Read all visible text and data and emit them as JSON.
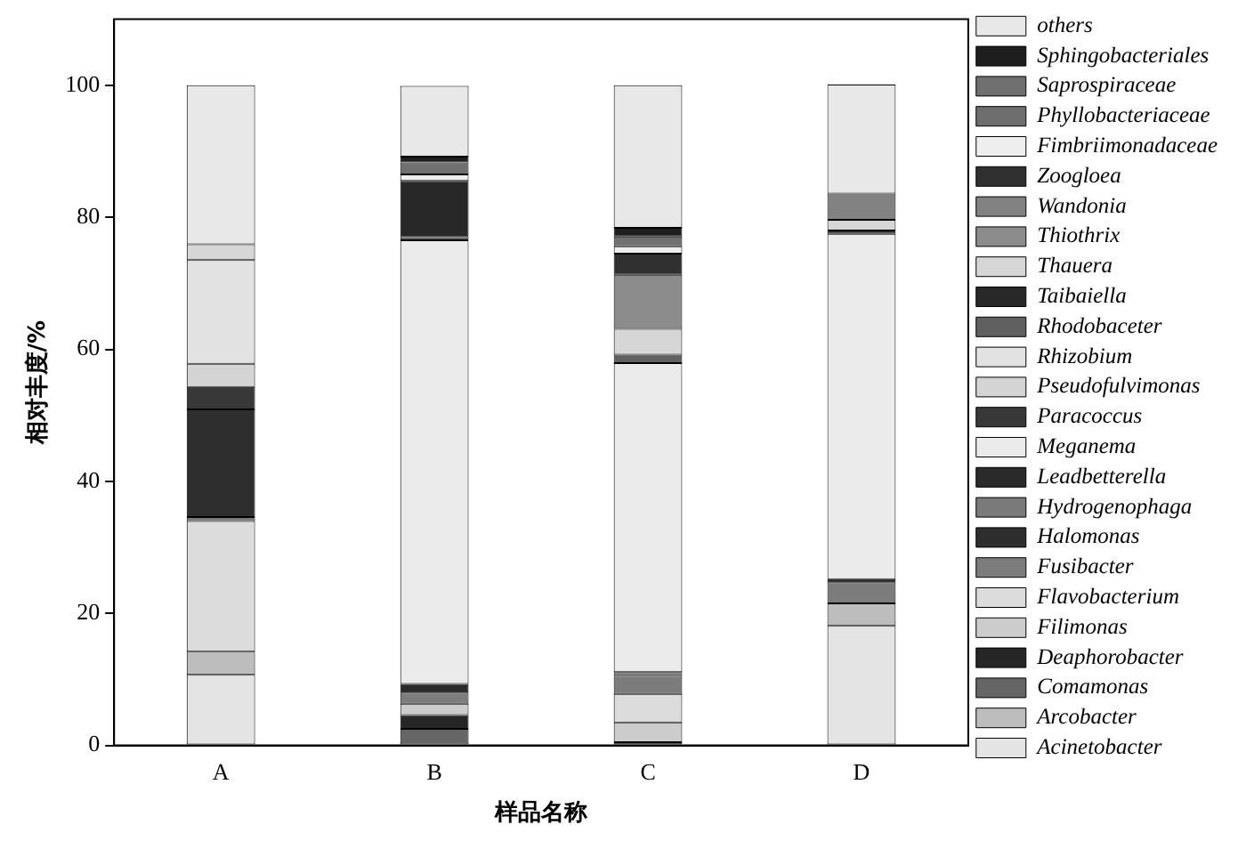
{
  "chart_data": {
    "type": "bar",
    "stacked": true,
    "xlabel": "样品名称",
    "ylabel": "相对丰度/%",
    "categories": [
      "A",
      "B",
      "C",
      "D"
    ],
    "ylim": [
      0,
      110
    ],
    "yticks": [
      0,
      20,
      40,
      60,
      80,
      100
    ],
    "grid": false,
    "legend": "right",
    "series": [
      {
        "name": "Acinetobacter",
        "color": "#e4e4e4",
        "values": [
          10.7,
          null,
          null,
          18.1
        ]
      },
      {
        "name": "Arcobacter",
        "color": "#bdbdbd",
        "values": [
          3.5,
          null,
          null,
          3.4
        ]
      },
      {
        "name": "Comamonas",
        "color": "#666666",
        "values": [
          null,
          2.5,
          null,
          null
        ]
      },
      {
        "name": "Deaphorobacter",
        "color": "#262626",
        "values": [
          null,
          2.1,
          0.5,
          null
        ]
      },
      {
        "name": "Filimonas",
        "color": "#cccccc",
        "values": [
          null,
          1.7,
          3.0,
          null
        ]
      },
      {
        "name": "Flavobacterium",
        "color": "#dcdcdc",
        "values": [
          19.8,
          null,
          4.3,
          null
        ]
      },
      {
        "name": "Fusibacter",
        "color": "#7c7c7c",
        "values": [
          0.6,
          1.7,
          2.6,
          3.2
        ]
      },
      {
        "name": "Halomonas",
        "color": "#2e2e2e",
        "values": [
          16.3,
          null,
          null,
          null
        ]
      },
      {
        "name": "Hydrogenophaga",
        "color": "#7a7a7a",
        "values": [
          null,
          null,
          0.7,
          null
        ]
      },
      {
        "name": "Leadbetterella",
        "color": "#2a2a2a",
        "values": [
          null,
          1.3,
          null,
          0.5
        ]
      },
      {
        "name": "Meganema",
        "color": "#ebebeb",
        "values": [
          null,
          67.2,
          46.8,
          52.3
        ]
      },
      {
        "name": "Paracoccus",
        "color": "#383838",
        "values": [
          3.4,
          null,
          null,
          0.5
        ]
      },
      {
        "name": "Pseudofulvimonas",
        "color": "#d4d4d4",
        "values": [
          3.5,
          null,
          null,
          null
        ]
      },
      {
        "name": "Rhizobium",
        "color": "#e2e2e2",
        "values": [
          15.7,
          null,
          null,
          null
        ]
      },
      {
        "name": "Rhodobaceter",
        "color": "#606060",
        "values": [
          null,
          0.5,
          1.3,
          null
        ]
      },
      {
        "name": "Taibaiella",
        "color": "#282828",
        "values": [
          null,
          8.5,
          null,
          null
        ]
      },
      {
        "name": "Thauera",
        "color": "#d6d6d6",
        "values": [
          2.4,
          null,
          3.9,
          1.6
        ]
      },
      {
        "name": "Thiothrix",
        "color": "#8c8c8c",
        "values": [
          null,
          null,
          8.2,
          null
        ]
      },
      {
        "name": "Wandonia",
        "color": "#828282",
        "values": [
          null,
          null,
          null,
          4.0
        ]
      },
      {
        "name": "Zoogloea",
        "color": "#303030",
        "values": [
          null,
          null,
          3.2,
          null
        ]
      },
      {
        "name": "Fimbriimonadaceae",
        "color": "#eeeeee",
        "values": [
          null,
          1.0,
          1.1,
          null
        ]
      },
      {
        "name": "Phyllobacteriaceae",
        "color": "#6e6e6e",
        "values": [
          null,
          null,
          null,
          null
        ]
      },
      {
        "name": "Saprospiraceae",
        "color": "#707070",
        "values": [
          null,
          1.8,
          1.5,
          null
        ]
      },
      {
        "name": "Sphingobacteriales",
        "color": "#1e1e1e",
        "values": [
          null,
          0.9,
          1.3,
          null
        ]
      },
      {
        "name": "others",
        "color": "#e8e8e8",
        "values": [
          24.1,
          10.7,
          21.6,
          16.5
        ]
      }
    ]
  }
}
